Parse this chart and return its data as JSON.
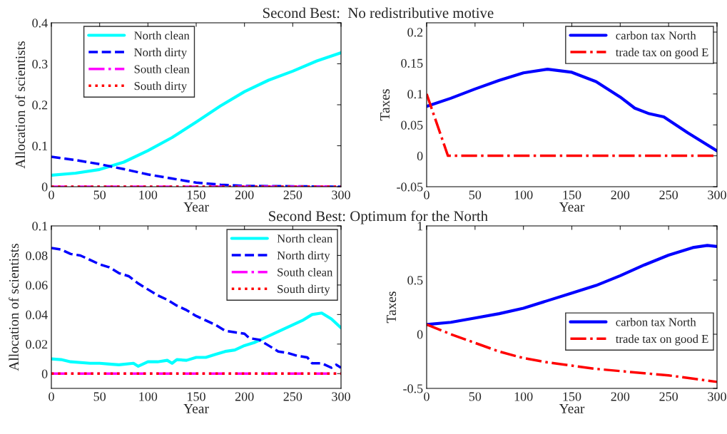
{
  "chart_data": [
    {
      "type": "line",
      "title": "Second Best:  No redistributive motive",
      "xlabel": "Year",
      "ylabel": "Allocation of scientists",
      "xlim": [
        0,
        300
      ],
      "xticks": [
        0,
        50,
        100,
        150,
        200,
        250,
        300
      ],
      "ylim": [
        0,
        0.4
      ],
      "yticks": [
        0,
        0.1,
        0.2,
        0.3,
        0.4
      ],
      "legend": "top left",
      "grid": false,
      "marker": "none",
      "series": [
        {
          "name": "North clean",
          "color": "#00ffff",
          "line_style": "solid",
          "x": [
            0,
            25,
            50,
            75,
            100,
            125,
            150,
            175,
            200,
            225,
            250,
            275,
            300
          ],
          "values": [
            0.028,
            0.033,
            0.042,
            0.06,
            0.088,
            0.12,
            0.158,
            0.197,
            0.232,
            0.26,
            0.282,
            0.307,
            0.327
          ]
        },
        {
          "name": "North dirty",
          "color": "#0000ff",
          "line_style": "dashed",
          "x": [
            0,
            25,
            50,
            75,
            100,
            125,
            150,
            175,
            200,
            250,
            300
          ],
          "values": [
            0.073,
            0.065,
            0.055,
            0.043,
            0.03,
            0.02,
            0.01,
            0.005,
            0.002,
            0.001,
            0
          ]
        },
        {
          "name": "South clean",
          "color": "#ff00ff",
          "line_style": "dashdot",
          "x": [
            0,
            300
          ],
          "values": [
            0,
            0
          ]
        },
        {
          "name": "South dirty",
          "color": "#ff0000",
          "line_style": "dotted",
          "x": [
            0,
            300
          ],
          "values": [
            0,
            0
          ]
        }
      ]
    },
    {
      "type": "line",
      "xlabel": "Year",
      "ylabel": "Taxes",
      "xlim": [
        0,
        300
      ],
      "xticks": [
        0,
        50,
        100,
        150,
        200,
        250,
        300
      ],
      "ylim": [
        -0.05,
        0.215
      ],
      "yticks": [
        -0.05,
        0,
        0.05,
        0.1,
        0.15,
        0.2
      ],
      "legend": "top right",
      "grid": false,
      "marker": "none",
      "series": [
        {
          "name": "carbon tax North",
          "color": "#0000ff",
          "line_style": "solid",
          "x": [
            0,
            25,
            50,
            75,
            100,
            125,
            150,
            175,
            200,
            215,
            230,
            245,
            270,
            300
          ],
          "values": [
            0.08,
            0.093,
            0.108,
            0.122,
            0.134,
            0.14,
            0.135,
            0.12,
            0.095,
            0.077,
            0.068,
            0.063,
            0.037,
            0.008
          ]
        },
        {
          "name": "trade tax on good E",
          "color": "#ff0000",
          "line_style": "dashdot",
          "x": [
            0,
            22,
            300
          ],
          "values": [
            0.1,
            0,
            0
          ]
        }
      ]
    },
    {
      "type": "line",
      "title": "Second Best: Optimum for the North",
      "xlabel": "Year",
      "ylabel": "Allocation of scientists",
      "xlim": [
        0,
        300
      ],
      "xticks": [
        0,
        50,
        100,
        150,
        200,
        250,
        300
      ],
      "ylim": [
        -0.01,
        0.1
      ],
      "yticks": [
        0,
        0.02,
        0.04,
        0.06,
        0.08,
        0.1
      ],
      "legend": "top right",
      "grid": false,
      "marker": "none",
      "series": [
        {
          "name": "North clean",
          "color": "#00ffff",
          "line_style": "solid",
          "x": [
            0,
            10,
            20,
            40,
            50,
            60,
            70,
            85,
            90,
            100,
            110,
            120,
            125,
            130,
            140,
            150,
            160,
            170,
            180,
            190,
            200,
            210,
            220,
            230,
            240,
            250,
            260,
            270,
            280,
            290,
            300
          ],
          "values": [
            0.01,
            0.0095,
            0.008,
            0.007,
            0.007,
            0.0065,
            0.006,
            0.007,
            0.005,
            0.008,
            0.008,
            0.009,
            0.007,
            0.0095,
            0.009,
            0.011,
            0.011,
            0.013,
            0.015,
            0.016,
            0.019,
            0.021,
            0.024,
            0.027,
            0.03,
            0.033,
            0.036,
            0.04,
            0.041,
            0.037,
            0.031
          ]
        },
        {
          "name": "North dirty",
          "color": "#0000ff",
          "line_style": "dashed",
          "x": [
            0,
            10,
            20,
            30,
            40,
            50,
            60,
            70,
            80,
            90,
            100,
            110,
            120,
            130,
            140,
            150,
            160,
            170,
            180,
            190,
            200,
            205,
            215,
            225,
            235,
            245,
            255,
            265,
            270,
            280,
            290,
            295,
            300
          ],
          "values": [
            0.085,
            0.084,
            0.081,
            0.08,
            0.077,
            0.074,
            0.072,
            0.068,
            0.066,
            0.061,
            0.057,
            0.053,
            0.05,
            0.046,
            0.043,
            0.039,
            0.036,
            0.033,
            0.029,
            0.028,
            0.027,
            0.024,
            0.023,
            0.019,
            0.015,
            0.014,
            0.012,
            0.011,
            0.007,
            0.007,
            0.004,
            0.006,
            0.004
          ]
        },
        {
          "name": "South clean",
          "color": "#ff00ff",
          "line_style": "dashdot",
          "x": [
            0,
            300
          ],
          "values": [
            0,
            0
          ]
        },
        {
          "name": "South dirty",
          "color": "#ff0000",
          "line_style": "dotted",
          "x": [
            0,
            300
          ],
          "values": [
            0,
            0
          ]
        }
      ]
    },
    {
      "type": "line",
      "xlabel": "Year",
      "ylabel": "Taxes",
      "xlim": [
        0,
        300
      ],
      "xticks": [
        0,
        50,
        100,
        150,
        200,
        250,
        300
      ],
      "ylim": [
        -0.5,
        1
      ],
      "yticks": [
        -0.5,
        0,
        0.5,
        1
      ],
      "legend": "right",
      "grid": false,
      "marker": "none",
      "series": [
        {
          "name": "carbon tax North",
          "color": "#0000ff",
          "line_style": "solid",
          "x": [
            0,
            25,
            50,
            75,
            100,
            125,
            150,
            175,
            200,
            225,
            250,
            275,
            290,
            300
          ],
          "values": [
            0.09,
            0.11,
            0.15,
            0.19,
            0.24,
            0.31,
            0.38,
            0.45,
            0.54,
            0.64,
            0.73,
            0.8,
            0.82,
            0.81
          ]
        },
        {
          "name": "trade tax on good E",
          "color": "#ff0000",
          "line_style": "dashdot",
          "x": [
            0,
            25,
            50,
            75,
            100,
            125,
            150,
            175,
            200,
            225,
            250,
            275,
            300
          ],
          "values": [
            0.09,
            0,
            -0.08,
            -0.16,
            -0.22,
            -0.26,
            -0.29,
            -0.32,
            -0.34,
            -0.36,
            -0.38,
            -0.41,
            -0.44
          ]
        }
      ]
    }
  ]
}
